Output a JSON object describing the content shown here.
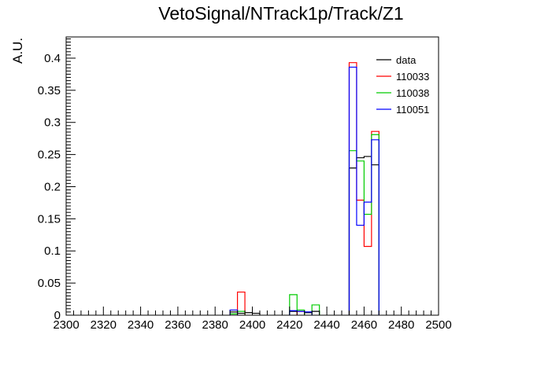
{
  "chart_data": {
    "type": "histogram",
    "title": "VetoSignal/NTrack1p/Track/Z1",
    "xlabel": "",
    "ylabel": "A.U.",
    "xlim": [
      2300,
      2500
    ],
    "ylim": [
      0,
      0.433
    ],
    "x_ticks": [
      2300,
      2320,
      2340,
      2360,
      2380,
      2400,
      2420,
      2440,
      2460,
      2480,
      2500
    ],
    "y_ticks": [
      0,
      0.05,
      0.1,
      0.15,
      0.2,
      0.25,
      0.3,
      0.35,
      0.4
    ],
    "y_tick_labels": [
      "0",
      "0.05",
      "0.1",
      "0.15",
      "0.2",
      "0.25",
      "0.3",
      "0.35",
      "0.4"
    ],
    "bin_width": 4,
    "legend_position": "top-right",
    "series": [
      {
        "name": "data",
        "color": "#000000",
        "bins": [
          {
            "x": 2388,
            "y": 0.005
          },
          {
            "x": 2392,
            "y": 0.003
          },
          {
            "x": 2396,
            "y": 0.004
          },
          {
            "x": 2400,
            "y": 0.003
          },
          {
            "x": 2420,
            "y": 0.006
          },
          {
            "x": 2424,
            "y": 0.006
          },
          {
            "x": 2428,
            "y": 0.004
          },
          {
            "x": 2432,
            "y": 0.006
          },
          {
            "x": 2452,
            "y": 0.229
          },
          {
            "x": 2456,
            "y": 0.245
          },
          {
            "x": 2460,
            "y": 0.247
          },
          {
            "x": 2464,
            "y": 0.234
          }
        ]
      },
      {
        "name": "110033",
        "color": "#ff0000",
        "bins": [
          {
            "x": 2392,
            "y": 0.036
          },
          {
            "x": 2424,
            "y": 0.006
          },
          {
            "x": 2452,
            "y": 0.393
          },
          {
            "x": 2456,
            "y": 0.179
          },
          {
            "x": 2460,
            "y": 0.107
          },
          {
            "x": 2464,
            "y": 0.286
          }
        ]
      },
      {
        "name": "110038",
        "color": "#00cc00",
        "bins": [
          {
            "x": 2388,
            "y": 0.002
          },
          {
            "x": 2392,
            "y": 0.006
          },
          {
            "x": 2420,
            "y": 0.032
          },
          {
            "x": 2424,
            "y": 0.008
          },
          {
            "x": 2432,
            "y": 0.016
          },
          {
            "x": 2452,
            "y": 0.256
          },
          {
            "x": 2456,
            "y": 0.24
          },
          {
            "x": 2460,
            "y": 0.157
          },
          {
            "x": 2464,
            "y": 0.281
          }
        ]
      },
      {
        "name": "110051",
        "color": "#0000ff",
        "bins": [
          {
            "x": 2388,
            "y": 0.008
          },
          {
            "x": 2420,
            "y": 0.007
          },
          {
            "x": 2424,
            "y": 0.006
          },
          {
            "x": 2428,
            "y": 0.005
          },
          {
            "x": 2452,
            "y": 0.386
          },
          {
            "x": 2456,
            "y": 0.14
          },
          {
            "x": 2460,
            "y": 0.176
          },
          {
            "x": 2464,
            "y": 0.273
          }
        ]
      }
    ]
  }
}
